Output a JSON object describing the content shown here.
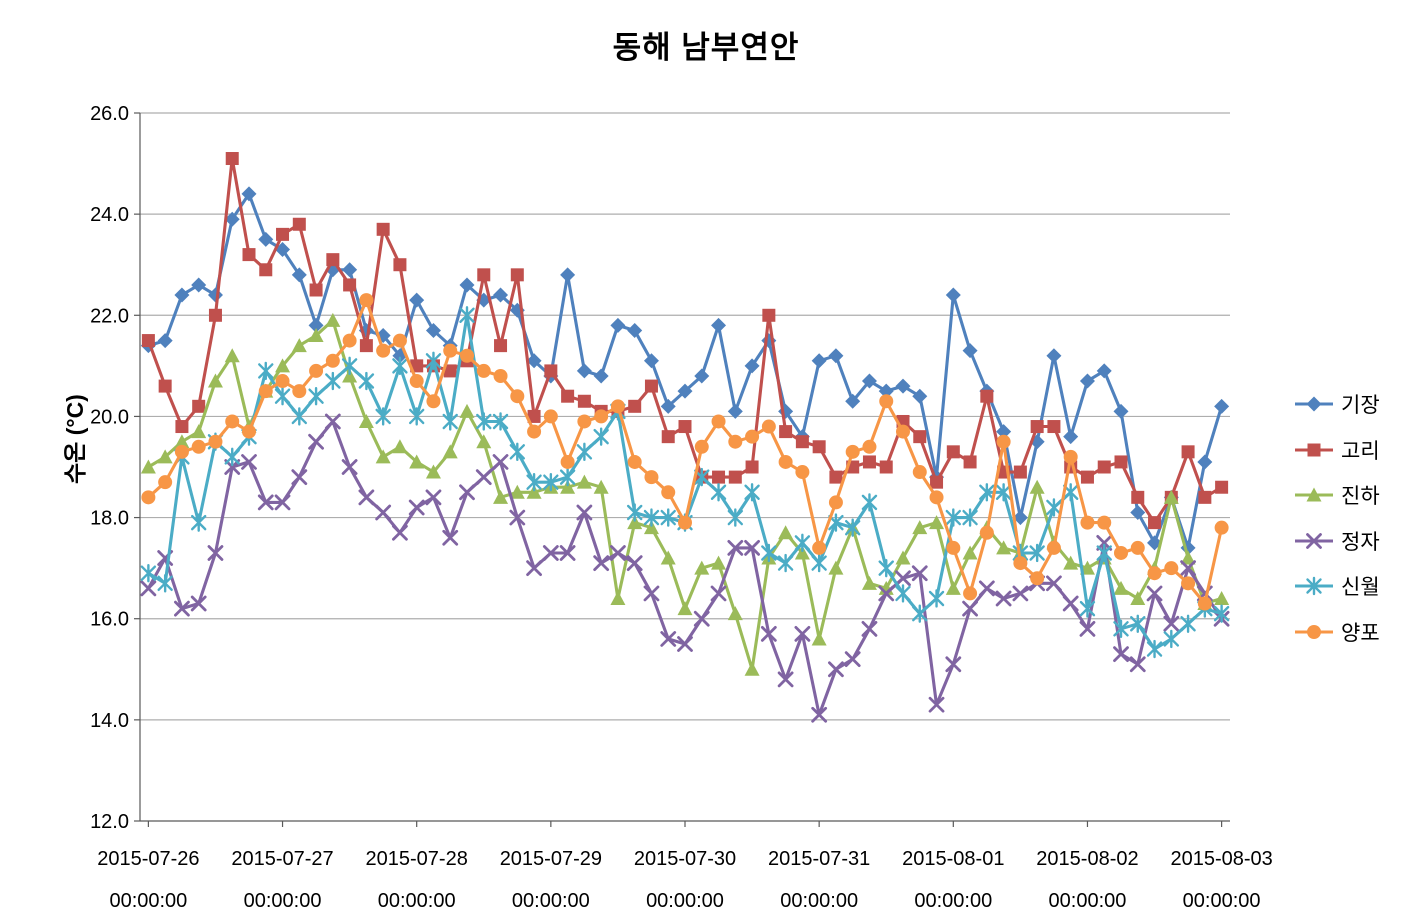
{
  "chart_data": {
    "type": "line",
    "title": "동해 남부연안",
    "ylabel": "수온 (°C)",
    "ylim": [
      12.0,
      26.0
    ],
    "ytick_step": 2.0,
    "grid": "horizontal",
    "legend_position": "right",
    "x_start": "2015-07-26 00:00:00",
    "x_interval_hours": 3,
    "x_points": 65,
    "x_tick_labels": [
      {
        "date": "2015-07-26",
        "time": "00:00:00"
      },
      {
        "date": "2015-07-27",
        "time": "00:00:00"
      },
      {
        "date": "2015-07-28",
        "time": "00:00:00"
      },
      {
        "date": "2015-07-29",
        "time": "00:00:00"
      },
      {
        "date": "2015-07-30",
        "time": "00:00:00"
      },
      {
        "date": "2015-07-31",
        "time": "00:00:00"
      },
      {
        "date": "2015-08-01",
        "time": "00:00:00"
      },
      {
        "date": "2015-08-02",
        "time": "00:00:00"
      },
      {
        "date": "2015-08-03",
        "time": "00:00:00"
      }
    ],
    "series": [
      {
        "name": "기장",
        "color": "#4F81BD",
        "marker": "diamond",
        "values": [
          21.4,
          21.5,
          22.4,
          22.6,
          22.4,
          23.9,
          24.4,
          23.5,
          23.3,
          22.8,
          21.8,
          22.9,
          22.9,
          21.7,
          21.6,
          21.2,
          22.3,
          21.7,
          21.4,
          22.6,
          22.3,
          22.4,
          22.1,
          21.1,
          20.8,
          22.8,
          20.9,
          20.8,
          21.8,
          21.7,
          21.1,
          20.2,
          20.5,
          20.8,
          21.8,
          20.1,
          21.0,
          21.5,
          20.1,
          19.6,
          21.1,
          21.2,
          20.3,
          20.7,
          20.5,
          20.6,
          20.4,
          18.8,
          22.4,
          21.3,
          20.5,
          19.7,
          18.0,
          19.5,
          21.2,
          19.6,
          20.7,
          20.9,
          20.1,
          18.1,
          17.5,
          18.4,
          17.4,
          19.1,
          20.2
        ]
      },
      {
        "name": "고리",
        "color": "#C0504D",
        "marker": "square",
        "values": [
          21.5,
          20.6,
          19.8,
          20.2,
          22.0,
          25.1,
          23.2,
          22.9,
          23.6,
          23.8,
          22.5,
          23.1,
          22.6,
          21.4,
          23.7,
          23.0,
          21.0,
          21.0,
          20.9,
          21.1,
          22.8,
          21.4,
          22.8,
          20.0,
          20.9,
          20.4,
          20.3,
          20.1,
          20.1,
          20.2,
          20.6,
          19.6,
          19.8,
          18.8,
          18.8,
          18.8,
          19.0,
          22.0,
          19.7,
          19.5,
          19.4,
          18.8,
          19.0,
          19.1,
          19.0,
          19.9,
          19.6,
          18.7,
          19.3,
          19.1,
          20.4,
          18.9,
          18.9,
          19.8,
          19.8,
          19.0,
          18.8,
          19.0,
          19.1,
          18.4,
          17.9,
          18.4,
          19.3,
          18.4,
          18.6
        ]
      },
      {
        "name": "진하",
        "color": "#9BBB59",
        "marker": "triangle",
        "values": [
          19.0,
          19.2,
          19.5,
          19.7,
          20.7,
          21.2,
          19.8,
          20.5,
          21.0,
          21.4,
          21.6,
          21.9,
          20.8,
          19.9,
          19.2,
          19.4,
          19.1,
          18.9,
          19.3,
          20.1,
          19.5,
          18.4,
          18.5,
          18.5,
          18.6,
          18.6,
          18.7,
          18.6,
          16.4,
          17.9,
          17.8,
          17.2,
          16.2,
          17.0,
          17.1,
          16.1,
          15.0,
          17.2,
          17.7,
          17.3,
          15.6,
          17.0,
          17.8,
          16.7,
          16.6,
          17.2,
          17.8,
          17.9,
          16.6,
          17.3,
          17.8,
          17.4,
          17.3,
          18.6,
          17.5,
          17.1,
          17.0,
          17.2,
          16.6,
          16.4,
          17.0,
          18.4,
          17.2,
          16.3,
          16.4
        ]
      },
      {
        "name": "정자",
        "color": "#8064A2",
        "marker": "x",
        "values": [
          16.6,
          17.2,
          16.2,
          16.3,
          17.3,
          19.0,
          19.1,
          18.3,
          18.3,
          18.8,
          19.5,
          19.9,
          19.0,
          18.4,
          18.1,
          17.7,
          18.2,
          18.4,
          17.6,
          18.5,
          18.8,
          19.1,
          18.0,
          17.0,
          17.3,
          17.3,
          18.1,
          17.1,
          17.3,
          17.1,
          16.5,
          15.6,
          15.5,
          16.0,
          16.5,
          17.4,
          17.4,
          15.7,
          14.8,
          15.7,
          14.1,
          15.0,
          15.2,
          15.8,
          16.5,
          16.8,
          16.9,
          14.3,
          15.1,
          16.2,
          16.6,
          16.4,
          16.5,
          16.7,
          16.7,
          16.3,
          15.8,
          17.5,
          15.3,
          15.1,
          16.5,
          15.9,
          17.0,
          16.5,
          16.0
        ]
      },
      {
        "name": "신월",
        "color": "#4BACC6",
        "marker": "asterisk",
        "values": [
          16.9,
          16.7,
          19.2,
          17.9,
          19.5,
          19.2,
          19.6,
          20.9,
          20.4,
          20.0,
          20.4,
          20.7,
          21.0,
          20.7,
          20.0,
          21.0,
          20.0,
          21.1,
          19.9,
          22.0,
          19.9,
          19.9,
          19.3,
          18.7,
          18.7,
          18.8,
          19.3,
          19.6,
          20.1,
          18.1,
          18.0,
          18.0,
          17.9,
          18.8,
          18.5,
          18.0,
          18.5,
          17.3,
          17.1,
          17.5,
          17.1,
          17.9,
          17.8,
          18.3,
          17.0,
          16.5,
          16.1,
          16.4,
          18.0,
          18.0,
          18.5,
          18.5,
          17.3,
          17.3,
          18.2,
          18.5,
          16.2,
          17.3,
          15.8,
          15.9,
          15.4,
          15.6,
          15.9,
          16.2,
          16.1
        ]
      },
      {
        "name": "양포",
        "color": "#F79646",
        "marker": "circle",
        "values": [
          18.4,
          18.7,
          19.3,
          19.4,
          19.5,
          19.9,
          19.7,
          20.5,
          20.7,
          20.5,
          20.9,
          21.1,
          21.5,
          22.3,
          21.3,
          21.5,
          20.7,
          20.3,
          21.3,
          21.2,
          20.9,
          20.8,
          20.4,
          19.7,
          20.0,
          19.1,
          19.9,
          20.0,
          20.2,
          19.1,
          18.8,
          18.5,
          17.9,
          19.4,
          19.9,
          19.5,
          19.6,
          19.8,
          19.1,
          18.9,
          17.4,
          18.3,
          19.3,
          19.4,
          20.3,
          19.7,
          18.9,
          18.4,
          17.4,
          16.5,
          17.7,
          19.5,
          17.1,
          16.8,
          17.4,
          19.2,
          17.9,
          17.9,
          17.3,
          17.4,
          16.9,
          17.0,
          16.7,
          16.3,
          17.8
        ]
      }
    ]
  }
}
